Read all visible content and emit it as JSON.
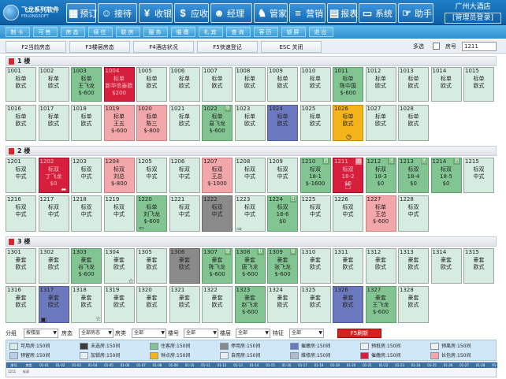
{
  "app": {
    "logo_title": "飞龙系列软件",
    "logo_sub": "FEILONGSOFT",
    "hotel_name": "广州大酒店",
    "login_status": "[管理员登录]"
  },
  "toolbar": [
    {
      "label": "预订",
      "icon": "calendar-icon"
    },
    {
      "label": "接待",
      "icon": "reception-icon"
    },
    {
      "label": "收银",
      "icon": "cash-icon"
    },
    {
      "label": "应收",
      "icon": "receivable-icon"
    },
    {
      "label": "经理",
      "icon": "manager-icon"
    },
    {
      "label": "管家",
      "icon": "housekeeper-icon"
    },
    {
      "label": "营销",
      "icon": "marketing-icon"
    },
    {
      "label": "报表",
      "icon": "report-icon"
    },
    {
      "label": "系统",
      "icon": "system-icon"
    },
    {
      "label": "助手",
      "icon": "assistant-icon"
    }
  ],
  "menu": [
    "制卡",
    "可售",
    "房态",
    "续住",
    "联房",
    "服务",
    "催缴",
    "礼宾",
    "查询",
    "客历",
    "锁屏",
    "退出"
  ],
  "function_keys": [
    "F2当前房态",
    "F3楼层房态",
    "F4酒店状况",
    "F5快速登记",
    "ESC 关闭"
  ],
  "multi_select_label": "多选",
  "room_label": "房号",
  "room_input_value": "1211",
  "floors": [
    {
      "label": "1 楼",
      "rooms": [
        {
          "num": "1001",
          "status": "empty",
          "lines": [
            "标单",
            "欧式"
          ]
        },
        {
          "num": "1002",
          "status": "empty",
          "lines": [
            "标单",
            "欧式"
          ]
        },
        {
          "num": "1003",
          "status": "booked",
          "lines": [
            "标单",
            "王飞龙",
            "$-600"
          ]
        },
        {
          "num": "1004",
          "status": "red",
          "lines": [
            "标单",
            "新华信泰欧",
            "$200"
          ]
        },
        {
          "num": "1005",
          "status": "empty",
          "lines": [
            "标单",
            "欧式"
          ]
        },
        {
          "num": "1006",
          "status": "empty",
          "lines": [
            "标单",
            "欧式"
          ]
        },
        {
          "num": "1007",
          "status": "empty",
          "lines": [
            "标单",
            "欧式"
          ]
        },
        {
          "num": "1008",
          "status": "empty",
          "lines": [
            "标单",
            "欧式"
          ]
        },
        {
          "num": "1009",
          "status": "empty",
          "lines": [
            "标单",
            "欧式"
          ]
        },
        {
          "num": "1010",
          "status": "empty",
          "lines": [
            "标单",
            "欧式"
          ]
        },
        {
          "num": "1011",
          "status": "booked",
          "lines": [
            "标单",
            "陈中国",
            "$-600"
          ]
        },
        {
          "num": "1012",
          "status": "empty",
          "lines": [
            "标单",
            "欧式"
          ]
        },
        {
          "num": "1013",
          "status": "empty",
          "lines": [
            "标单",
            "欧式"
          ]
        },
        {
          "num": "1014",
          "status": "empty",
          "lines": [
            "标单",
            "欧式"
          ]
        },
        {
          "num": "1015",
          "status": "empty",
          "lines": [
            "标单",
            "欧式"
          ]
        },
        {
          "num": "1016",
          "status": "empty",
          "lines": [
            "标单",
            "欧式"
          ]
        },
        {
          "num": "1017",
          "status": "empty",
          "lines": [
            "标单",
            "欧式"
          ]
        },
        {
          "num": "1018",
          "status": "empty",
          "lines": [
            "标单",
            "欧式"
          ]
        },
        {
          "num": "1019",
          "status": "pink",
          "lines": [
            "标单",
            "王五",
            "$-600"
          ]
        },
        {
          "num": "1020",
          "status": "pink",
          "lines": [
            "标单",
            "陈三",
            "$-800"
          ]
        },
        {
          "num": "1021",
          "status": "empty",
          "lines": [
            "标单",
            "欧式"
          ]
        },
        {
          "num": "1022",
          "status": "booked",
          "lines": [
            "标单",
            "易飞龙",
            "$-600"
          ],
          "tag": "联"
        },
        {
          "num": "1023",
          "status": "empty",
          "lines": [
            "标单",
            "欧式"
          ]
        },
        {
          "num": "1024",
          "status": "blue",
          "lines": [
            "标单",
            "欧式"
          ]
        },
        {
          "num": "1025",
          "status": "empty",
          "lines": [
            "标单",
            "欧式"
          ]
        },
        {
          "num": "1026",
          "status": "yellow",
          "lines": [
            "标单",
            "欧式"
          ],
          "glyph": "clock"
        },
        {
          "num": "1027",
          "status": "empty",
          "lines": [
            "标单",
            "欧式"
          ]
        },
        {
          "num": "1028",
          "status": "empty",
          "lines": [
            "标单",
            "欧式"
          ]
        }
      ]
    },
    {
      "label": "2 楼",
      "rooms": [
        {
          "num": "1201",
          "status": "empty",
          "lines": [
            "标双",
            "中式"
          ]
        },
        {
          "num": "1202",
          "status": "red",
          "lines": [
            "标双",
            "丁飞龙",
            "$0"
          ],
          "glyph": "arrows"
        },
        {
          "num": "1203",
          "status": "empty",
          "lines": [
            "标双",
            "中式"
          ]
        },
        {
          "num": "1204",
          "status": "pink",
          "lines": [
            "标双",
            "刘总",
            "$-800"
          ]
        },
        {
          "num": "1205",
          "status": "empty",
          "lines": [
            "标双",
            "中式"
          ]
        },
        {
          "num": "1206",
          "status": "empty",
          "lines": [
            "标双",
            "中式"
          ]
        },
        {
          "num": "1207",
          "status": "pink",
          "lines": [
            "标双",
            "王总",
            "$-1000"
          ]
        },
        {
          "num": "1208",
          "status": "empty",
          "lines": [
            "标双",
            "中式"
          ]
        },
        {
          "num": "1209",
          "status": "empty",
          "lines": [
            "标双",
            "中式"
          ]
        },
        {
          "num": "1210",
          "status": "booked",
          "lines": [
            "标双",
            "18-1",
            "$-1600"
          ],
          "tag": "团",
          "tag2": "联"
        },
        {
          "num": "1211",
          "status": "red",
          "lines": [
            "标双",
            "18-2",
            "$0"
          ],
          "tag": "团",
          "glyph": "hand"
        },
        {
          "num": "1212",
          "status": "booked",
          "lines": [
            "标双",
            "18-3",
            "$0"
          ],
          "tag": "团"
        },
        {
          "num": "1213",
          "status": "booked",
          "lines": [
            "标双",
            "18-4",
            "$0"
          ],
          "tag": "团"
        },
        {
          "num": "1214",
          "status": "booked",
          "lines": [
            "标双",
            "18-5",
            "$0"
          ],
          "tag": "团"
        },
        {
          "num": "1215",
          "status": "empty",
          "lines": [
            "标双",
            "中式"
          ]
        },
        {
          "num": "1216",
          "status": "empty",
          "lines": [
            "标双",
            "中式"
          ]
        },
        {
          "num": "1217",
          "status": "empty",
          "lines": [
            "标双",
            "中式"
          ]
        },
        {
          "num": "1218",
          "status": "empty",
          "lines": [
            "标双",
            "中式"
          ]
        },
        {
          "num": "1219",
          "status": "empty",
          "lines": [
            "标双",
            "中式"
          ]
        },
        {
          "num": "1220",
          "status": "booked",
          "lines": [
            "标单",
            "刘飞龙",
            "$-600"
          ],
          "glyph": "arrow-left"
        },
        {
          "num": "1221",
          "status": "empty",
          "lines": [
            "标双",
            "中式"
          ]
        },
        {
          "num": "1222",
          "status": "gray",
          "lines": [
            "标双",
            "中式"
          ]
        },
        {
          "num": "1223",
          "status": "empty",
          "lines": [
            "标双",
            "中式"
          ],
          "glyph": "arrow-right"
        },
        {
          "num": "1224",
          "status": "booked",
          "lines": [
            "标双",
            "18-6",
            "$0"
          ],
          "tag": "团"
        },
        {
          "num": "1225",
          "status": "empty",
          "lines": [
            "标双",
            "中式"
          ]
        },
        {
          "num": "1226",
          "status": "empty",
          "lines": [
            "标双",
            "中式"
          ]
        },
        {
          "num": "1227",
          "status": "pink",
          "lines": [
            "标单",
            "王总",
            "$-600"
          ]
        },
        {
          "num": "1228",
          "status": "empty",
          "lines": [
            "标双",
            "中式"
          ]
        }
      ]
    },
    {
      "label": "3 楼",
      "rooms": [
        {
          "num": "1301",
          "status": "empty",
          "lines": [
            "豪套",
            "欧式"
          ]
        },
        {
          "num": "1302",
          "status": "empty",
          "lines": [
            "豪套",
            "欧式"
          ]
        },
        {
          "num": "1303",
          "status": "booked",
          "lines": [
            "豪套",
            "谷飞龙",
            "$-600"
          ]
        },
        {
          "num": "1304",
          "status": "empty",
          "lines": [
            "豪套",
            "欧式"
          ],
          "glyph": "star"
        },
        {
          "num": "1305",
          "status": "empty",
          "lines": [
            "豪套",
            "欧式"
          ]
        },
        {
          "num": "1306",
          "status": "gray",
          "lines": [
            "豪套",
            "欧式"
          ]
        },
        {
          "num": "1307",
          "status": "booked",
          "lines": [
            "豪套",
            "陈飞龙",
            "$-600"
          ],
          "tag": "联"
        },
        {
          "num": "1308",
          "status": "booked",
          "lines": [
            "豪套",
            "唐飞龙",
            "$-600"
          ],
          "tag": "联"
        },
        {
          "num": "1309",
          "status": "booked",
          "lines": [
            "豪套",
            "张飞龙",
            "$-600"
          ],
          "tag": "联"
        },
        {
          "num": "1310",
          "status": "empty",
          "lines": [
            "豪套",
            "欧式"
          ]
        },
        {
          "num": "1311",
          "status": "empty",
          "lines": [
            "豪套",
            "欧式"
          ]
        },
        {
          "num": "1312",
          "status": "empty",
          "lines": [
            "豪套",
            "欧式"
          ]
        },
        {
          "num": "1313",
          "status": "empty",
          "lines": [
            "豪套",
            "欧式"
          ]
        },
        {
          "num": "1314",
          "status": "empty",
          "lines": [
            "豪套",
            "欧式"
          ]
        },
        {
          "num": "1315",
          "status": "empty",
          "lines": [
            "豪套",
            "欧式"
          ]
        },
        {
          "num": "1316",
          "status": "empty",
          "lines": [
            "豪套",
            "欧式"
          ]
        },
        {
          "num": "1317",
          "status": "blue",
          "lines": [
            "豪套",
            "欧式"
          ],
          "glyph": "lock"
        },
        {
          "num": "1318",
          "status": "empty",
          "lines": [
            "豪套",
            "欧式"
          ],
          "glyph": "star"
        },
        {
          "num": "1319",
          "status": "empty",
          "lines": [
            "豪套",
            "欧式"
          ]
        },
        {
          "num": "1320",
          "status": "empty",
          "lines": [
            "豪套",
            "欧式"
          ]
        },
        {
          "num": "1321",
          "status": "empty",
          "lines": [
            "豪套",
            "欧式"
          ]
        },
        {
          "num": "1322",
          "status": "empty",
          "lines": [
            "豪套",
            "欧式"
          ]
        },
        {
          "num": "1323",
          "status": "booked",
          "lines": [
            "豪套",
            "赵飞龙",
            "$-600"
          ]
        },
        {
          "num": "1324",
          "status": "empty",
          "lines": [
            "豪套",
            "欧式"
          ]
        },
        {
          "num": "1325",
          "status": "empty",
          "lines": [
            "豪套",
            "欧式"
          ]
        },
        {
          "num": "1326",
          "status": "blue",
          "lines": [
            "豪套",
            "欧式"
          ]
        },
        {
          "num": "1327",
          "status": "booked",
          "lines": [
            "豪套",
            "王飞龙",
            "$-600"
          ]
        },
        {
          "num": "1328",
          "status": "empty",
          "lines": [
            "豪套",
            "欧式"
          ]
        }
      ]
    }
  ],
  "filters": {
    "group_label": "分组",
    "group_value": "按楼层",
    "state_label": "房态",
    "state_value": "全部房态",
    "type_label": "房类",
    "type_value": "全部",
    "floor_label": "楼号",
    "floor_value": "全部",
    "level_label": "楼层",
    "level_value": "全部",
    "feature_label": "特征",
    "feature_value": "全部",
    "refresh_label": "F5刷新"
  },
  "legend": [
    {
      "label": "可用房:150间",
      "color": "#d6ece0"
    },
    {
      "label": "未选房:150间",
      "color": "#3c3c3c"
    },
    {
      "label": "住客房:150间",
      "color": "#82c593"
    },
    {
      "label": "停用房:150间",
      "color": "#8a8a8a"
    },
    {
      "label": "催缴房:150间",
      "color": "#6d79bf"
    },
    {
      "label": "预抵房:150间",
      "color": "#f0f0f0"
    },
    {
      "label": "预离房:150间",
      "color": "#f0f0f0"
    },
    {
      "label": "预留房:150间",
      "color": "#b9cfe6"
    },
    {
      "label": "加锁房:150间",
      "color": "#e8eef4"
    },
    {
      "label": "钟点房:150间",
      "color": "#f5b51a"
    },
    {
      "label": "自用房:150间",
      "color": "#e8eef4"
    },
    {
      "label": "维修房:150间",
      "color": "#b3bccc"
    },
    {
      "label": "催缴房:150间",
      "color": "#d51f3d"
    },
    {
      "label": "长包房:150间",
      "color": "#f2a7aa"
    }
  ],
  "timeline": {
    "head": [
      "房号",
      "房类",
      "01-01",
      "01-02",
      "01-03",
      "01-04",
      "01-05",
      "01-06",
      "01-07",
      "01-08",
      "01-09",
      "01-10",
      "01-11",
      "01-12",
      "01-13",
      "01-14",
      "01-15",
      "01-16",
      "01-17",
      "01-18",
      "01-19",
      "01-20",
      "01-21",
      "01-22",
      "01-23",
      "01-24",
      "01-25",
      "01-26",
      "01-27",
      "01-28",
      "01-29"
    ],
    "row": [
      "1211",
      "标双"
    ]
  }
}
